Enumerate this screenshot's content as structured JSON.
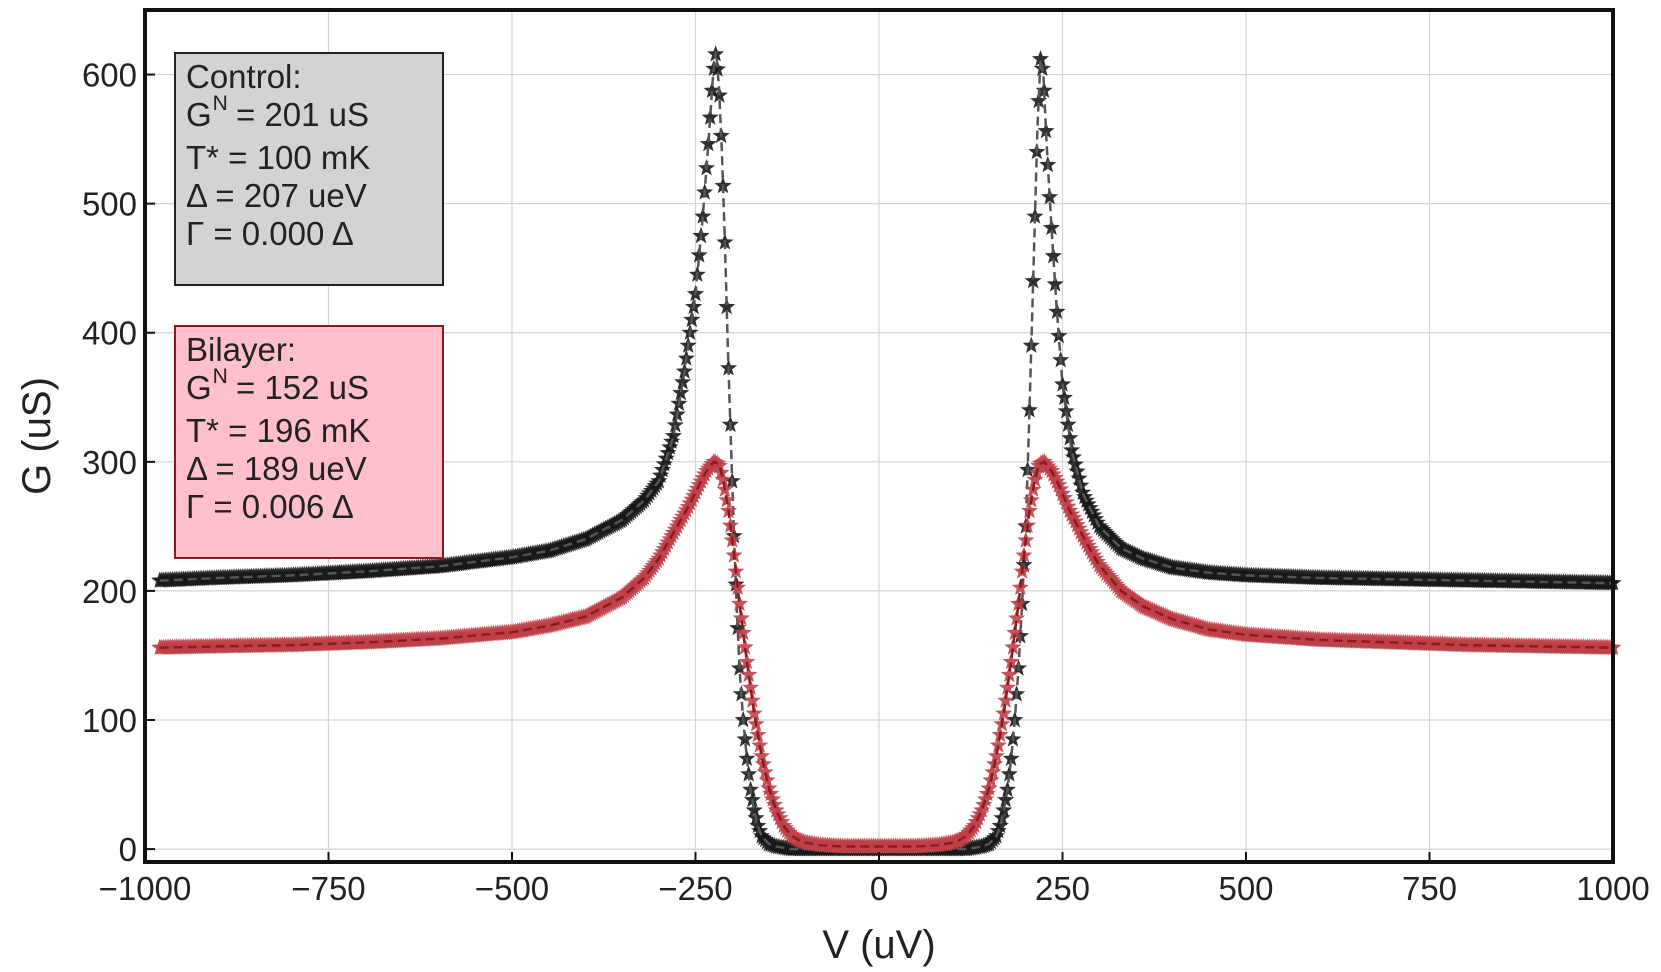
{
  "chart_data": {
    "type": "scatter",
    "title": "",
    "xlabel": "V (uV)",
    "ylabel": "G (uS)",
    "xlim": [
      -1000,
      1000
    ],
    "ylim": [
      -10,
      650
    ],
    "xticks": [
      -1000,
      -750,
      -500,
      -250,
      0,
      250,
      500,
      750,
      1000
    ],
    "xtick_labels": [
      "−1000",
      "−750",
      "−500",
      "−250",
      "0",
      "250",
      "500",
      "750",
      "1000"
    ],
    "yticks": [
      0,
      100,
      200,
      300,
      400,
      500,
      600
    ],
    "ytick_labels": [
      "0",
      "100",
      "200",
      "300",
      "400",
      "500",
      "600"
    ],
    "grid": true,
    "series": [
      {
        "name": "Control",
        "marker": "star",
        "color": "#1a1a1a",
        "fit_color": "#555555",
        "params": {
          "GN": 201,
          "T_mK": 100,
          "Delta_ueV": 207,
          "Gamma": 0.0
        },
        "x": [
          -980,
          -900,
          -800,
          -700,
          -600,
          -500,
          -450,
          -400,
          -350,
          -320,
          -300,
          -280,
          -265,
          -250,
          -240,
          -232,
          -226,
          -222,
          -218,
          -214,
          -210,
          -206,
          -202,
          -198,
          -194,
          -190,
          -185,
          -180,
          -175,
          -170,
          -165,
          -160,
          -150,
          -140,
          -130,
          -120,
          -100,
          -50,
          0,
          50,
          100,
          120,
          130,
          140,
          150,
          160,
          165,
          170,
          175,
          180,
          185,
          190,
          195,
          200,
          204,
          208,
          212,
          216,
          220,
          224,
          228,
          234,
          242,
          250,
          262,
          278,
          300,
          330,
          360,
          400,
          450,
          500,
          600,
          700,
          800,
          900,
          1000
        ],
        "y": [
          208,
          210,
          212,
          215,
          219,
          226,
          231,
          240,
          255,
          270,
          285,
          320,
          370,
          430,
          490,
          550,
          600,
          618,
          590,
          540,
          470,
          390,
          320,
          250,
          190,
          140,
          100,
          70,
          46,
          30,
          18,
          10,
          4,
          2,
          1,
          0,
          0,
          0,
          0,
          0,
          0,
          0,
          1,
          2,
          4,
          10,
          18,
          30,
          46,
          70,
          100,
          140,
          190,
          250,
          320,
          400,
          480,
          560,
          612,
          600,
          550,
          490,
          420,
          360,
          310,
          275,
          250,
          233,
          225,
          218,
          214,
          212,
          210,
          209,
          208,
          207,
          206
        ]
      },
      {
        "name": "Bilayer",
        "marker": "star",
        "color": "#c0404a",
        "fit_color": "#8b1a1a",
        "params": {
          "GN": 152,
          "T_mK": 196,
          "Delta_ueV": 189,
          "Gamma": 0.006
        },
        "x": [
          -980,
          -900,
          -800,
          -700,
          -600,
          -500,
          -450,
          -400,
          -350,
          -320,
          -300,
          -280,
          -260,
          -245,
          -235,
          -225,
          -218,
          -212,
          -205,
          -198,
          -190,
          -180,
          -170,
          -160,
          -150,
          -140,
          -130,
          -120,
          -110,
          -100,
          -80,
          -50,
          0,
          50,
          80,
          100,
          110,
          120,
          130,
          140,
          150,
          160,
          170,
          180,
          190,
          198,
          205,
          212,
          218,
          225,
          235,
          245,
          260,
          280,
          300,
          330,
          360,
          400,
          450,
          500,
          600,
          700,
          800,
          900,
          1000
        ],
        "y": [
          156,
          157,
          158,
          160,
          163,
          168,
          173,
          180,
          195,
          210,
          225,
          245,
          265,
          282,
          293,
          300,
          298,
          285,
          262,
          230,
          190,
          145,
          105,
          72,
          47,
          30,
          18,
          11,
          7,
          5,
          3,
          2,
          2,
          2,
          3,
          5,
          7,
          11,
          18,
          30,
          47,
          72,
          105,
          145,
          190,
          230,
          262,
          285,
          298,
          300,
          293,
          282,
          262,
          240,
          220,
          200,
          188,
          178,
          170,
          166,
          162,
          160,
          158,
          157,
          156
        ]
      }
    ],
    "annotations": [
      {
        "name": "control-box",
        "lines": [
          "Control:",
          "G",
          "N",
          "= 201 uS",
          "T* =  100 mK",
          "Δ =  207 ueV",
          "Γ = 0.000 Δ"
        ]
      },
      {
        "name": "bilayer-box",
        "lines": [
          "Bilayer:",
          "G",
          "N",
          "= 152 uS",
          "T* =  196 mK",
          "Δ =  189 ueV",
          "Γ = 0.006 Δ"
        ]
      }
    ]
  },
  "control_box": {
    "title": "Control:",
    "g_symbol": "G",
    "g_sup": "N",
    "g_value": " = 201 uS",
    "t_line": "T* =  100 mK",
    "delta_line": "Δ =  207 ueV",
    "gamma_line": "Γ = 0.000 Δ"
  },
  "bilayer_box": {
    "title": "Bilayer:",
    "g_symbol": "G",
    "g_sup": "N",
    "g_value": " = 152 uS",
    "t_line": "T* =  196 mK",
    "delta_line": "Δ =  189 ueV",
    "gamma_line": "Γ = 0.006 Δ"
  }
}
